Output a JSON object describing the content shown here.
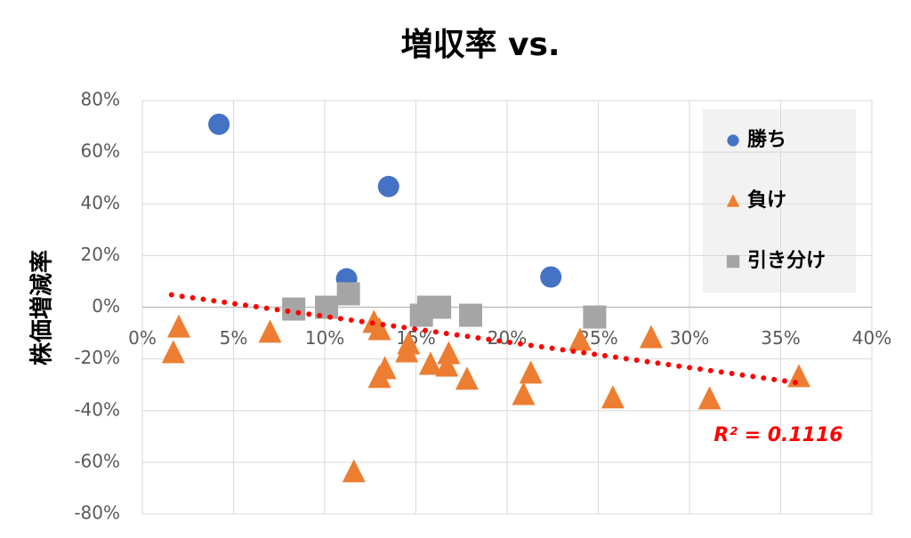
{
  "chart_data": {
    "type": "scatter",
    "title": "増収率 vs.",
    "y_label": "株価増減率",
    "xlim": [
      0,
      40
    ],
    "ylim": [
      -80,
      80
    ],
    "xticks": [
      {
        "value": 0,
        "label": "0%"
      },
      {
        "value": 5,
        "label": "5%"
      },
      {
        "value": 10,
        "label": "10%"
      },
      {
        "value": 15,
        "label": "15%"
      },
      {
        "value": 20,
        "label": "20%"
      },
      {
        "value": 25,
        "label": "25%"
      },
      {
        "value": 30,
        "label": "30%"
      },
      {
        "value": 35,
        "label": "35%"
      },
      {
        "value": 40,
        "label": "40%"
      }
    ],
    "yticks": [
      {
        "value": 80,
        "label": "80%"
      },
      {
        "value": 60,
        "label": "60%"
      },
      {
        "value": 40,
        "label": "40%"
      },
      {
        "value": 20,
        "label": "20%"
      },
      {
        "value": 0,
        "label": "0%"
      },
      {
        "value": -20,
        "label": "-20%"
      },
      {
        "value": -40,
        "label": "-40%"
      },
      {
        "value": -60,
        "label": "-60%"
      },
      {
        "value": -80,
        "label": "-80%"
      }
    ],
    "grid": true,
    "legend": "upper right",
    "series": [
      {
        "name": "勝ち",
        "color": "#4472c4",
        "marker": "circle",
        "x": [
          4.2,
          13.5,
          11.2,
          22.4
        ],
        "values": [
          70.8,
          46.7,
          11,
          11.7
        ]
      },
      {
        "name": "負け",
        "color": "#ed7d31",
        "marker": "triangle",
        "x": [
          2.0,
          1.7,
          7.0,
          12.7,
          13.0,
          13.3,
          13.0,
          14.6,
          14.5,
          15.8,
          16.8,
          16.7,
          17.8,
          21.3,
          20.9,
          24.0,
          25.8,
          27.9,
          31.1,
          36.0,
          11.6
        ],
        "values": [
          -7.6,
          -17.5,
          -9.6,
          -5.8,
          -8.6,
          -23.7,
          -27.1,
          -14.1,
          -17.2,
          -22,
          -17.9,
          -22.7,
          -27.8,
          -25.4,
          -33.7,
          -12.7,
          -35,
          -11.7,
          -35.4,
          -26.8,
          -63.6
        ]
      },
      {
        "name": "引き分け",
        "color": "#a5a5a5",
        "marker": "square",
        "x": [
          8.3,
          10.1,
          11.3,
          15.3,
          15.7,
          16.3,
          18.0,
          24.8
        ],
        "values": [
          -0.7,
          0,
          5.2,
          -3.1,
          0,
          0,
          -3.1,
          -3.8
        ]
      }
    ],
    "trendline": {
      "x": [
        1.6,
        35.9
      ],
      "values": [
        4.8,
        -29.2
      ],
      "color": "#ff0000",
      "label": "R² = 0.1116"
    }
  }
}
